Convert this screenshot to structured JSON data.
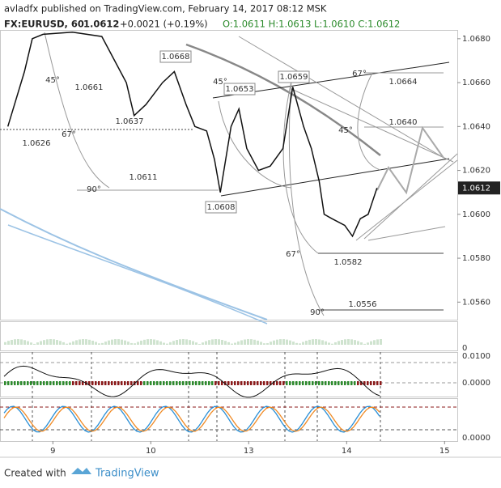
{
  "header": {
    "line1": "avladfx published on TradingView.com, February 14, 2017 08:12 MSK",
    "symbol": "FX:EURUSD, 60",
    "price": "1.0612",
    "change": "+0.0021 (+0.19%)",
    "ohlc": "O:1.0611 H:1.0613 L:1.0610 C:1.0612"
  },
  "chart_data": {
    "type": "line",
    "color": "#111111",
    "x": [
      0.54,
      0.71,
      0.79,
      0.9,
      1.2,
      1.5,
      1.75,
      1.83,
      1.95,
      2.12,
      2.24,
      2.36,
      2.45,
      2.57,
      2.65,
      2.71,
      2.82,
      2.9,
      2.98,
      3.1,
      3.22,
      3.35,
      3.45,
      3.56,
      3.64,
      3.72,
      3.77,
      3.85,
      3.98,
      4.06,
      4.14,
      4.22,
      4.31
    ],
    "values": [
      1.064,
      1.0665,
      1.068,
      1.0682,
      1.0683,
      1.0681,
      1.066,
      1.0645,
      1.065,
      1.066,
      1.0665,
      1.065,
      1.064,
      1.0638,
      1.0625,
      1.061,
      1.064,
      1.0648,
      1.063,
      1.062,
      1.0622,
      1.063,
      1.0658,
      1.064,
      1.063,
      1.0615,
      1.06,
      1.0598,
      1.0595,
      1.059,
      1.0598,
      1.06,
      1.0612
    ],
    "xlim": [
      0.46,
      5.13
    ],
    "xticks": [
      {
        "value": 1,
        "label": "9"
      },
      {
        "value": 2,
        "label": "10"
      },
      {
        "value": 3,
        "label": "13"
      },
      {
        "value": 4,
        "label": "14"
      },
      {
        "value": 5,
        "label": "15"
      }
    ],
    "ylim": [
      1.0552,
      1.0684
    ],
    "yticks": [
      {
        "value": 1.056,
        "label": "1.0560"
      },
      {
        "value": 1.058,
        "label": "1.0580"
      },
      {
        "value": 1.06,
        "label": "1.0600"
      },
      {
        "value": 1.062,
        "label": "1.0620"
      },
      {
        "value": 1.064,
        "label": "1.0640"
      },
      {
        "value": 1.066,
        "label": "1.0660"
      },
      {
        "value": 1.068,
        "label": "1.0680"
      }
    ],
    "last_label": "1.0612",
    "annotations": [
      "1.0668",
      "45°",
      "1.0661",
      "45°",
      "1.0653",
      "1.0659",
      "67°",
      "1.0664",
      "1.0637",
      "67°",
      "1.0626",
      "45°",
      "1.0640",
      "1.0611",
      "90°",
      "1.0608",
      "67°",
      "1.0582",
      "90°",
      "1.0556"
    ],
    "panes": [
      {
        "yticks": [
          "0"
        ]
      },
      {
        "yticks": [
          "0.0100",
          "0.0000"
        ]
      },
      {
        "yticks": [
          "0.0000"
        ]
      }
    ]
  },
  "footer": {
    "created": "Created with",
    "brand": "TradingView"
  }
}
